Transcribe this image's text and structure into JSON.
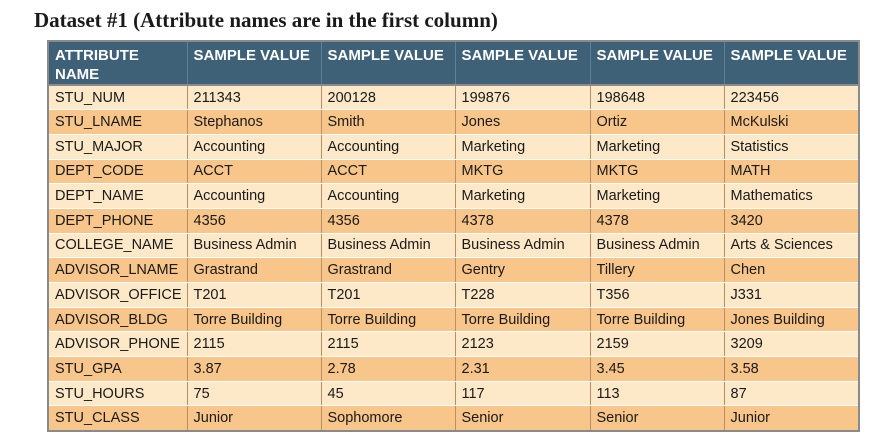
{
  "title": "Dataset #1 (Attribute names are in the first column)",
  "headers": [
    "ATTRIBUTE NAME",
    "SAMPLE VALUE",
    "SAMPLE VALUE",
    "SAMPLE VALUE",
    "SAMPLE VALUE",
    "SAMPLE VALUE"
  ],
  "rows": [
    [
      "STU_NUM",
      "211343",
      "200128",
      "199876",
      "198648",
      "223456"
    ],
    [
      "STU_LNAME",
      "Stephanos",
      "Smith",
      "Jones",
      "Ortiz",
      "McKulski"
    ],
    [
      "STU_MAJOR",
      "Accounting",
      "Accounting",
      "Marketing",
      "Marketing",
      "Statistics"
    ],
    [
      "DEPT_CODE",
      "ACCT",
      "ACCT",
      "MKTG",
      "MKTG",
      "MATH"
    ],
    [
      "DEPT_NAME",
      "Accounting",
      "Accounting",
      "Marketing",
      "Marketing",
      "Mathematics"
    ],
    [
      "DEPT_PHONE",
      "4356",
      "4356",
      "4378",
      "4378",
      "3420"
    ],
    [
      "COLLEGE_NAME",
      "Business Admin",
      "Business Admin",
      "Business Admin",
      "Business Admin",
      "Arts & Sciences"
    ],
    [
      "ADVISOR_LNAME",
      "Grastrand",
      "Grastrand",
      "Gentry",
      "Tillery",
      "Chen"
    ],
    [
      "ADVISOR_OFFICE",
      "T201",
      "T201",
      "T228",
      "T356",
      "J331"
    ],
    [
      "ADVISOR_BLDG",
      "Torre Building",
      "Torre Building",
      "Torre Building",
      "Torre Building",
      "Jones Building"
    ],
    [
      "ADVISOR_PHONE",
      "2115",
      "2115",
      "2123",
      "2159",
      "3209"
    ],
    [
      "STU_GPA",
      "3.87",
      "2.78",
      "2.31",
      "3.45",
      "3.58"
    ],
    [
      "STU_HOURS",
      "75",
      "45",
      "117",
      "113",
      "87"
    ],
    [
      "STU_CLASS",
      "Junior",
      "Sophomore",
      "Senior",
      "Senior",
      "Junior"
    ]
  ],
  "colors": {
    "header_bg": "#3e6178",
    "row_light": "#fde8c8",
    "row_dark": "#f8c58a"
  }
}
